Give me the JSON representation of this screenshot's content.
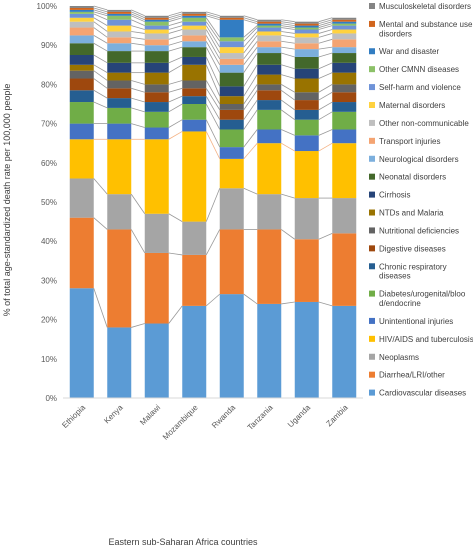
{
  "chart_data": {
    "type": "bar",
    "stacked": true,
    "normalized": true,
    "title": "",
    "xlabel": "Eastern sub-Saharan Africa countries",
    "ylabel": "% of total age-standardized death rate per 100,000 people",
    "ylim": [
      0,
      100
    ],
    "yticks": [
      "0%",
      "10%",
      "20%",
      "30%",
      "40%",
      "50%",
      "60%",
      "70%",
      "80%",
      "90%",
      "100%"
    ],
    "categories": [
      "Ethiopia",
      "Kenya",
      "Malawi",
      "Mozambique",
      "Rwanda",
      "Tanzania",
      "Uganda",
      "Zambia"
    ],
    "grid": false,
    "legend_position": "right",
    "series_lines": true,
    "series": [
      {
        "name": "Cardiovascular diseases",
        "color": "#5B9BD5",
        "values": [
          28,
          18,
          19,
          23.5,
          26.5,
          24,
          24.5,
          23.5
        ]
      },
      {
        "name": "Diarrhea/LRI/other",
        "color": "#ED7D31",
        "values": [
          18,
          25,
          18,
          13,
          16.5,
          19,
          16,
          18.5
        ]
      },
      {
        "name": "Neoplasms",
        "color": "#A5A5A5",
        "values": [
          10,
          9,
          10,
          8.5,
          10.5,
          9,
          10.5,
          9
        ]
      },
      {
        "name": "HIV/AIDS and tuberculosis",
        "color": "#FFC000",
        "values": [
          10,
          14,
          19,
          23,
          7.5,
          13,
          12,
          14
        ]
      },
      {
        "name": "Unintentional injuries",
        "color": "#4472C4",
        "values": [
          4,
          4,
          3,
          3,
          3,
          3.5,
          4,
          3.5
        ]
      },
      {
        "name": "Diabetes/urogenital/blood/endocrine",
        "color": "#70AD47",
        "values": [
          5.5,
          4,
          4,
          4,
          4.5,
          5,
          4,
          4.5
        ]
      },
      {
        "name": "Chronic respiratory diseases",
        "color": "#255E91",
        "values": [
          3,
          2.5,
          2.5,
          2,
          2.5,
          2.5,
          2.5,
          2.5
        ]
      },
      {
        "name": "Digestive diseases",
        "color": "#9E480E",
        "values": [
          3,
          2.5,
          2.5,
          2,
          2.5,
          2.5,
          2.5,
          2.5
        ]
      },
      {
        "name": "Nutritional deficiencies",
        "color": "#636363",
        "values": [
          2,
          2,
          2,
          2,
          1.5,
          1.5,
          2,
          2
        ]
      },
      {
        "name": "NTDs and Malaria",
        "color": "#997300",
        "values": [
          1.5,
          2,
          3,
          4,
          2,
          2.5,
          3.5,
          3
        ]
      },
      {
        "name": "Cirrhosis",
        "color": "#264478",
        "values": [
          2.5,
          2.5,
          2.5,
          2,
          2.5,
          2.5,
          2.5,
          2.5
        ]
      },
      {
        "name": "Neonatal disorders",
        "color": "#43682B",
        "values": [
          3,
          3,
          3,
          2.5,
          3.5,
          3,
          3,
          2.5
        ]
      },
      {
        "name": "Neurological disorders",
        "color": "#7CAFDD",
        "values": [
          2,
          2,
          1.5,
          1.5,
          2,
          1.5,
          2,
          1.5
        ]
      },
      {
        "name": "Transport injuries",
        "color": "#F4A472",
        "values": [
          2,
          1.5,
          1.5,
          1.5,
          1.5,
          1.5,
          1.5,
          2
        ]
      },
      {
        "name": "Other non-communicable",
        "color": "#BFBFBF",
        "values": [
          1.5,
          1.5,
          1.5,
          1.5,
          1.5,
          1.5,
          1.5,
          1.5
        ]
      },
      {
        "name": "Maternal disorders",
        "color": "#FFD23F",
        "values": [
          1,
          1.5,
          1,
          1,
          1.5,
          1,
          1,
          1
        ]
      },
      {
        "name": "Self-harm and violence",
        "color": "#6F93D8",
        "values": [
          1,
          1.5,
          1,
          1,
          1.5,
          1,
          1,
          1
        ]
      },
      {
        "name": "Other CMNN diseases",
        "color": "#8CC168",
        "values": [
          0.5,
          1,
          1,
          1,
          1,
          0.5,
          0.5,
          0.5
        ]
      },
      {
        "name": "War and disaster",
        "color": "#327DC2",
        "values": [
          0.5,
          0.5,
          0.5,
          0.5,
          4.5,
          0.5,
          0.5,
          0.5
        ]
      },
      {
        "name": "Mental and substance use disorders",
        "color": "#D1651D",
        "values": [
          0.5,
          0.5,
          0.5,
          0.5,
          0.5,
          0.5,
          0.5,
          0.5
        ]
      },
      {
        "name": "Musculoskeletal disorders",
        "color": "#848484",
        "values": [
          0.5,
          0.5,
          0.5,
          0.5,
          0.5,
          0.5,
          0.5,
          0.5
        ]
      }
    ],
    "legend": [
      [
        "Musculoskeletal disorders"
      ],
      [
        "Mental and substance use",
        "disorders"
      ],
      [
        "War and disaster"
      ],
      [
        "Other CMNN diseases"
      ],
      [
        "Self-harm and violence"
      ],
      [
        "Maternal disorders"
      ],
      [
        "Other non-communicable"
      ],
      [
        "Transport injuries"
      ],
      [
        "Neurological disorders"
      ],
      [
        "Neonatal disorders"
      ],
      [
        "Cirrhosis"
      ],
      [
        "NTDs and Malaria"
      ],
      [
        "Nutritional deficiencies"
      ],
      [
        "Digestive diseases"
      ],
      [
        "Chronic respiratory",
        "diseases"
      ],
      [
        "Diabetes/urogenital/bloo",
        "d/endocrine"
      ],
      [
        "Unintentional injuries"
      ],
      [
        "HIV/AIDS and tuberculosis"
      ],
      [
        "Neoplasms"
      ],
      [
        "Diarrhea/LRI/other"
      ],
      [
        "Cardiovascular diseases"
      ]
    ]
  }
}
